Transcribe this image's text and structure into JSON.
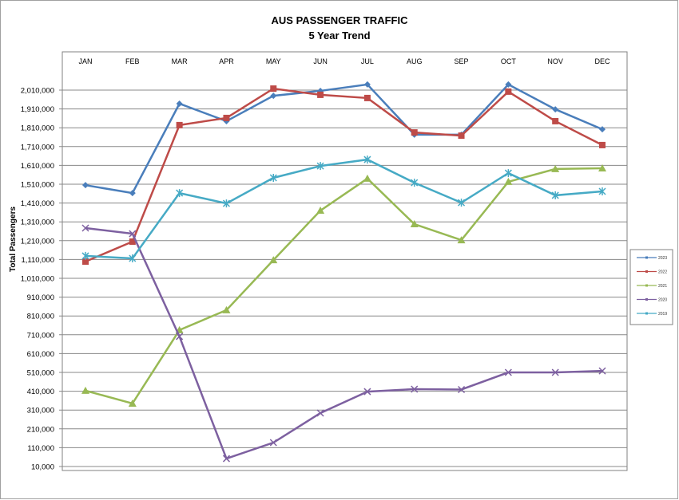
{
  "chart_data": {
    "type": "line",
    "title": "AUS PASSENGER TRAFFIC",
    "subtitle": "5 Year Trend",
    "xlabel": "",
    "ylabel": "Total Passengers",
    "categories": [
      "JAN",
      "FEB",
      "MAR",
      "APR",
      "MAY",
      "JUN",
      "JUL",
      "AUG",
      "SEP",
      "OCT",
      "NOV",
      "DEC"
    ],
    "yticks": [
      10000,
      110000,
      210000,
      310000,
      410000,
      510000,
      610000,
      710000,
      810000,
      910000,
      1010000,
      1110000,
      1210000,
      1310000,
      1410000,
      1510000,
      1610000,
      1710000,
      1810000,
      1910000,
      2010000
    ],
    "ytick_labels": [
      "10,000",
      "110,000",
      "210,000",
      "310,000",
      "410,000",
      "510,000",
      "610,000",
      "710,000",
      "810,000",
      "910,000",
      "1,010,000",
      "1,110,000",
      "1,210,000",
      "1,310,000",
      "1,410,000",
      "1,510,000",
      "1,610,000",
      "1,710,000",
      "1,810,000",
      "1,910,000",
      "2,010,000"
    ],
    "ylim": [
      10000,
      2110000
    ],
    "grid": true,
    "legend_position": "right",
    "series": [
      {
        "name": "2023",
        "color": "#4a7ebb",
        "marker": "diamond",
        "values": [
          1505000,
          1463000,
          1938000,
          1845000,
          1980000,
          2006000,
          2040000,
          1773000,
          1773000,
          2040000,
          1908000,
          1802000
        ]
      },
      {
        "name": "2022",
        "color": "#be4b48",
        "marker": "square",
        "values": [
          1099000,
          1205000,
          1824000,
          1862000,
          2018000,
          1985000,
          1968000,
          1785000,
          1768000,
          2002000,
          1845000,
          1718000
        ]
      },
      {
        "name": "2021",
        "color": "#98b954",
        "marker": "triangle",
        "values": [
          413000,
          345000,
          735000,
          841000,
          1107000,
          1370000,
          1540000,
          1298000,
          1213000,
          1523000,
          1591000,
          1595000
        ]
      },
      {
        "name": "2020",
        "color": "#7d60a0",
        "marker": "x",
        "values": [
          1277000,
          1247000,
          701000,
          52000,
          137000,
          294000,
          408000,
          421000,
          419000,
          510000,
          510000,
          518000
        ]
      },
      {
        "name": "2019",
        "color": "#46aac5",
        "marker": "star",
        "values": [
          1129000,
          1116000,
          1463000,
          1408000,
          1544000,
          1607000,
          1641000,
          1518000,
          1412000,
          1569000,
          1451000,
          1472000
        ]
      }
    ]
  }
}
